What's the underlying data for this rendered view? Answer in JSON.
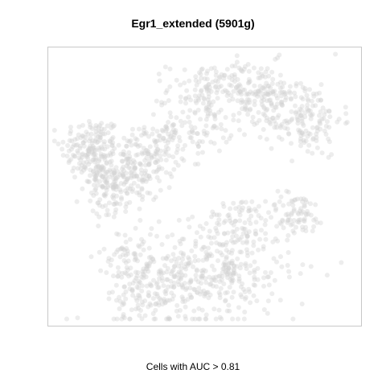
{
  "chart_data": {
    "type": "scatter",
    "title": "Egr1_extended (5901g)",
    "xlabel": "Cells with AUC > 0.81",
    "ylabel": "",
    "grid": false,
    "legend": "none",
    "axes_ticks": false,
    "point_color": "#d3d3d3",
    "point_opacity": 0.4,
    "box_color": "#c8c8c8",
    "clusters": [
      {
        "name": "c1",
        "cx": 0.13,
        "cy": 0.64,
        "sx": 0.05,
        "sy": 0.06,
        "n": 170
      },
      {
        "name": "c2",
        "cx": 0.25,
        "cy": 0.55,
        "sx": 0.06,
        "sy": 0.07,
        "n": 170
      },
      {
        "name": "c3",
        "cx": 0.34,
        "cy": 0.64,
        "sx": 0.05,
        "sy": 0.05,
        "n": 90
      },
      {
        "name": "c4",
        "cx": 0.2,
        "cy": 0.48,
        "sx": 0.05,
        "sy": 0.05,
        "n": 80
      },
      {
        "name": "c5",
        "cx": 0.47,
        "cy": 0.72,
        "sx": 0.06,
        "sy": 0.05,
        "n": 80
      },
      {
        "name": "c6",
        "cx": 0.52,
        "cy": 0.86,
        "sx": 0.07,
        "sy": 0.05,
        "n": 120
      },
      {
        "name": "c7",
        "cx": 0.68,
        "cy": 0.84,
        "sx": 0.07,
        "sy": 0.06,
        "n": 150
      },
      {
        "name": "c8",
        "cx": 0.83,
        "cy": 0.75,
        "sx": 0.06,
        "sy": 0.07,
        "n": 150
      },
      {
        "name": "c9",
        "cx": 0.8,
        "cy": 0.4,
        "sx": 0.05,
        "sy": 0.04,
        "n": 80
      },
      {
        "name": "c10",
        "cx": 0.62,
        "cy": 0.36,
        "sx": 0.05,
        "sy": 0.05,
        "n": 80
      },
      {
        "name": "c11",
        "cx": 0.5,
        "cy": 0.18,
        "sx": 0.14,
        "sy": 0.09,
        "n": 420
      },
      {
        "name": "c12",
        "cx": 0.3,
        "cy": 0.1,
        "sx": 0.06,
        "sy": 0.05,
        "n": 90
      },
      {
        "name": "c13",
        "cx": 0.25,
        "cy": 0.25,
        "sx": 0.04,
        "sy": 0.04,
        "n": 40
      }
    ]
  }
}
